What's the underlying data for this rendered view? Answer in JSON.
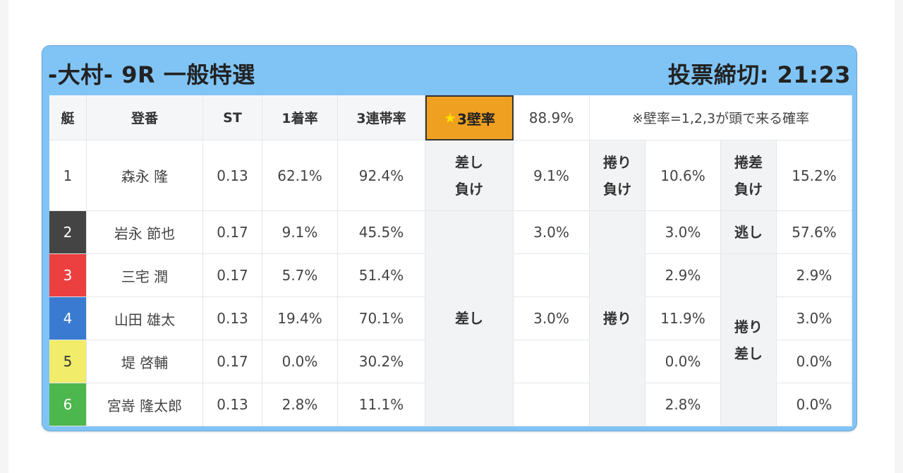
{
  "header": {
    "race_title": "-大村- 9R 一般特選",
    "deadline": "投票締切: 21:23"
  },
  "columns": {
    "boat": "艇",
    "racer": "登番",
    "st": "ST",
    "first_rate": "1着率",
    "trio_rate": "3連帯率",
    "wall_label": "3壁率",
    "wall_value": "88.9%",
    "wall_note": "※壁率=1,2,3が頭で来る確率"
  },
  "rows": [
    {
      "boat": "1",
      "name": "森永 隆",
      "st": "0.13",
      "first": "62.1%",
      "trio": "92.4%",
      "color": "#ffffff",
      "text_color": "#333333"
    },
    {
      "boat": "2",
      "name": "岩永 節也",
      "st": "0.17",
      "first": "9.1%",
      "trio": "45.5%",
      "color": "#444444",
      "text_color": "#ffffff"
    },
    {
      "boat": "3",
      "name": "三宅 潤",
      "st": "0.17",
      "first": "5.7%",
      "trio": "51.4%",
      "color": "#ec4040",
      "text_color": "#ffffff"
    },
    {
      "boat": "4",
      "name": "山田 雄太",
      "st": "0.13",
      "first": "19.4%",
      "trio": "70.1%",
      "color": "#3a7ad0",
      "text_color": "#ffffff"
    },
    {
      "boat": "5",
      "name": "堤 啓輔",
      "st": "0.17",
      "first": "0.0%",
      "trio": "30.2%",
      "color": "#f1ec6a",
      "text_color": "#333333"
    },
    {
      "boat": "6",
      "name": "宮嵜 隆太郎",
      "st": "0.13",
      "first": "2.8%",
      "trio": "11.1%",
      "color": "#4cb74c",
      "text_color": "#ffffff"
    }
  ],
  "patterns": {
    "sashi_make_label_1": "差し",
    "sashi_make_label_2": "負け",
    "sashi_make_value": "9.1%",
    "makuri_make_label_1": "捲り",
    "makuri_make_label_2": "負け",
    "makuri_make_value": "10.6%",
    "makurisashi_make_label_1": "捲差",
    "makurisashi_make_label_2": "負け",
    "makurisashi_make_value": "15.2%",
    "sashi_label": "差し",
    "sashi_values": [
      "3.0%",
      "",
      "3.0%",
      "",
      ""
    ],
    "makuri_label": "捲り",
    "makuri_values": [
      "3.0%",
      "2.9%",
      "11.9%",
      "0.0%",
      "2.8%"
    ],
    "nige_label": "逃し",
    "nige_value": "57.6%",
    "makurisashi_label_1": "捲り",
    "makurisashi_label_2": "差し",
    "makurisashi_values": [
      "2.9%",
      "3.0%",
      "0.0%",
      "0.0%"
    ]
  }
}
